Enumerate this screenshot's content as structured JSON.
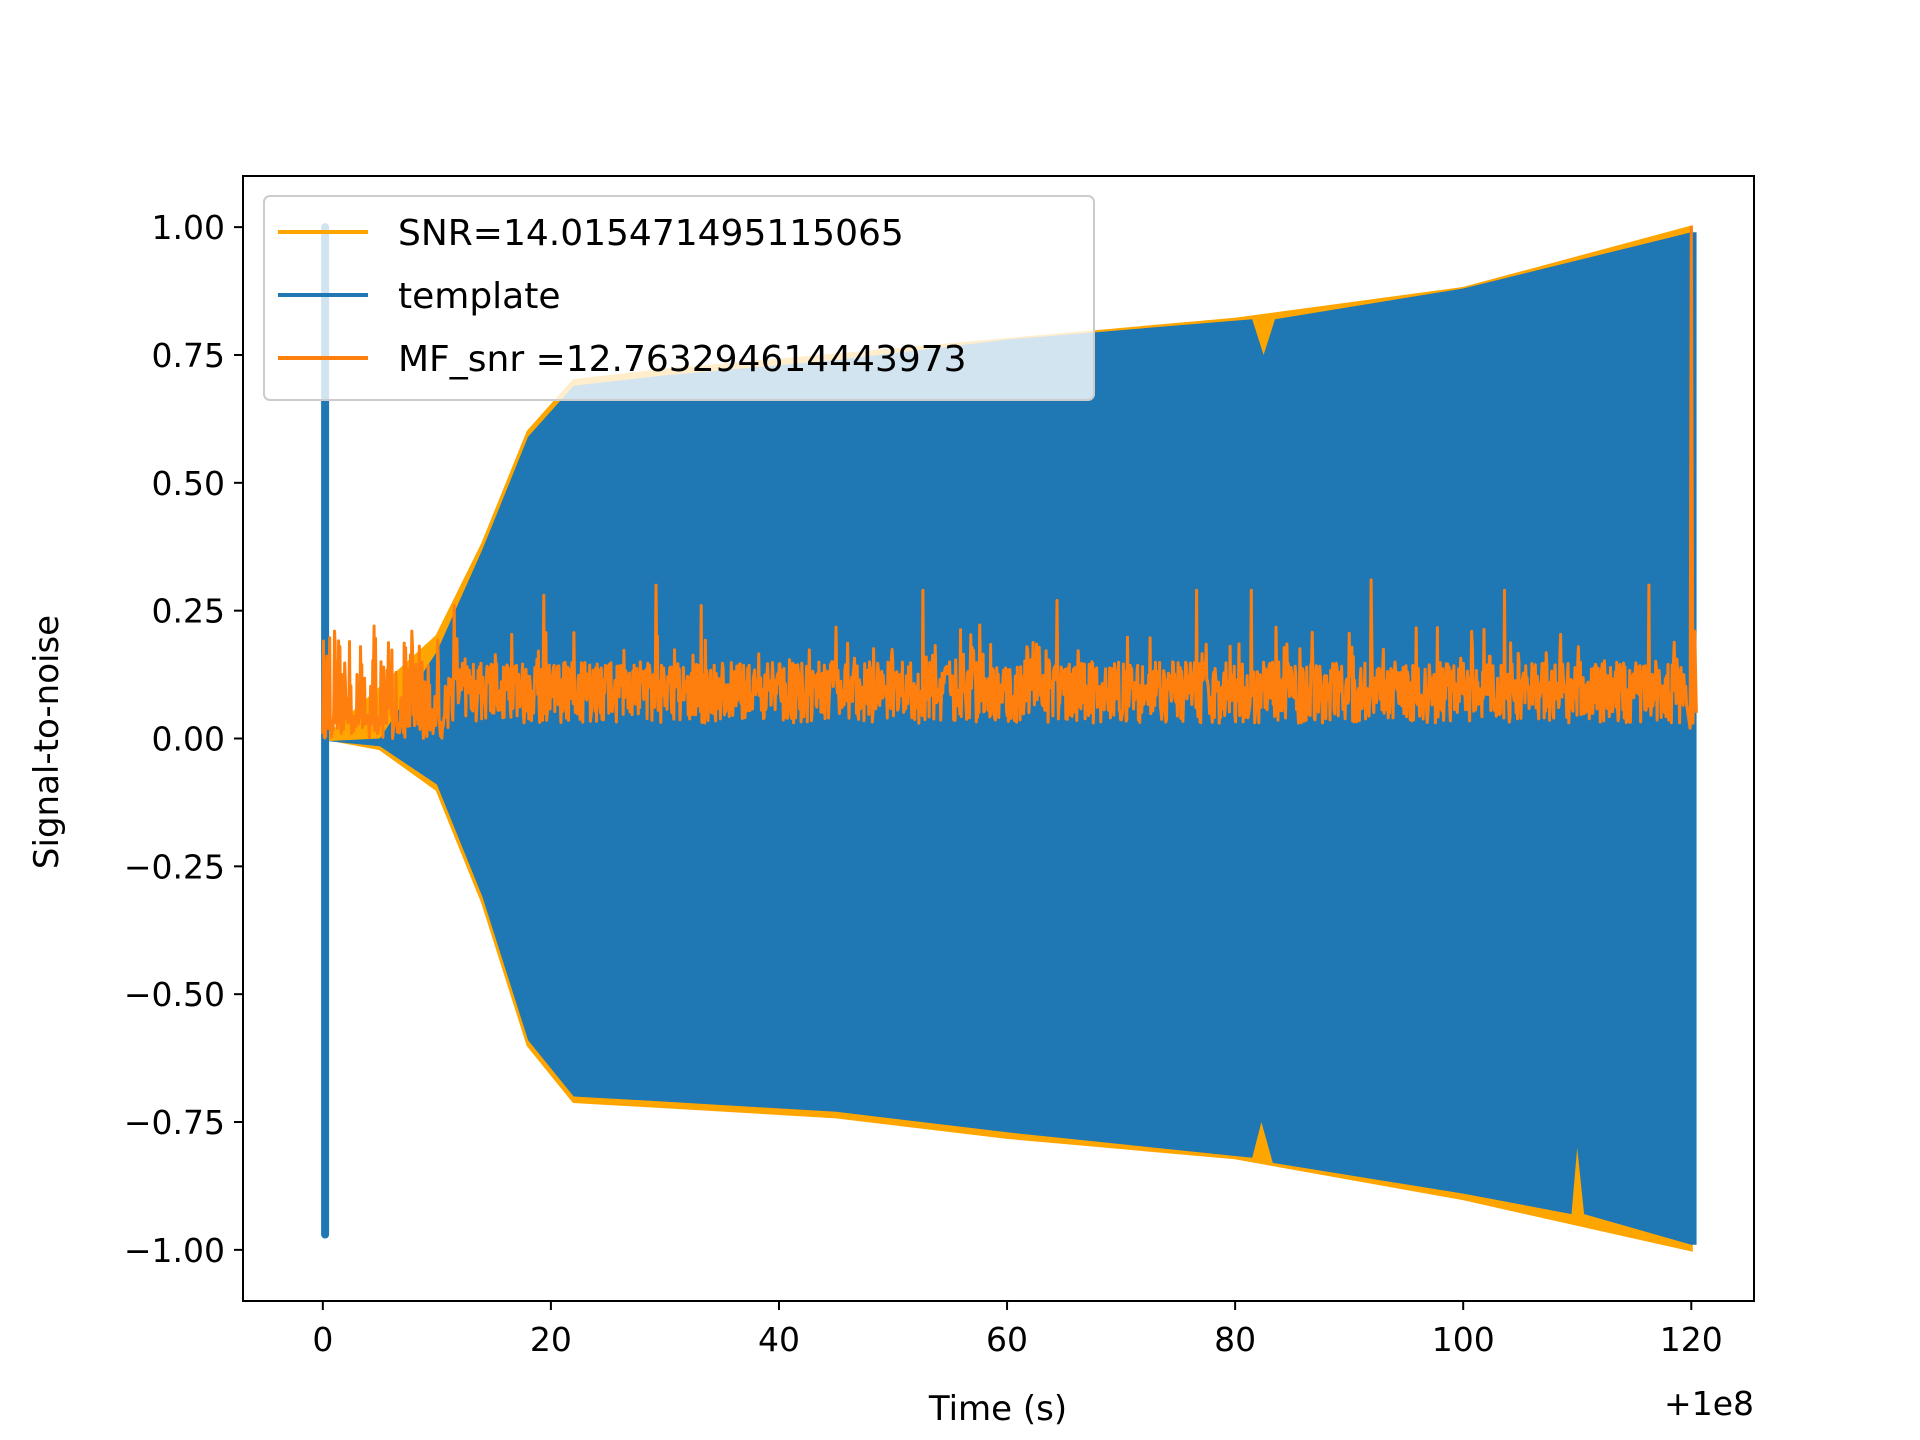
{
  "chart_data": {
    "type": "line",
    "xlabel": "Time (s)",
    "ylabel": "Signal-to-noise",
    "x_offset_label": "+1e8",
    "xlim": [
      -7,
      125.5
    ],
    "ylim": [
      -1.1,
      1.1
    ],
    "x_ticks": [
      0,
      20,
      40,
      60,
      80,
      100,
      120
    ],
    "x_tick_labels": [
      "0",
      "20",
      "40",
      "60",
      "80",
      "100",
      "120"
    ],
    "y_ticks": [
      1.0,
      0.75,
      0.5,
      0.25,
      0.0,
      -0.25,
      -0.5,
      -0.75,
      -1.0
    ],
    "y_tick_labels": [
      "1.00",
      "0.75",
      "0.50",
      "0.25",
      "0.00",
      "−0.25",
      "−0.50",
      "−0.75",
      "−1.00"
    ],
    "grid": false,
    "legend_position": "top-left",
    "series": [
      {
        "name": "SNR=14.015471495115065",
        "color": "#ffa500",
        "role": "envelope",
        "upper_envelope": [
          [
            0.2,
            0.0
          ],
          [
            10,
            0.2
          ],
          [
            14,
            0.38
          ],
          [
            18,
            0.6
          ],
          [
            22,
            0.7
          ],
          [
            30,
            0.72
          ],
          [
            45,
            0.75
          ],
          [
            60,
            0.78
          ],
          [
            80,
            0.82
          ],
          [
            100,
            0.88
          ],
          [
            120,
            1.0
          ]
        ],
        "lower_envelope": [
          [
            0.2,
            -0.0
          ],
          [
            5,
            -0.02
          ],
          [
            10,
            -0.1
          ],
          [
            14,
            -0.32
          ],
          [
            18,
            -0.6
          ],
          [
            22,
            -0.71
          ],
          [
            30,
            -0.72
          ],
          [
            45,
            -0.74
          ],
          [
            60,
            -0.78
          ],
          [
            80,
            -0.82
          ],
          [
            100,
            -0.9
          ],
          [
            120,
            -1.0
          ]
        ]
      },
      {
        "name": "template",
        "color": "#1f77b4",
        "role": "filled-oscillation",
        "spike": {
          "x": 0.2,
          "top": 1.0,
          "bottom": -0.97
        },
        "upper_envelope": [
          [
            0.4,
            -0.005
          ],
          [
            5,
            0.0
          ],
          [
            10,
            0.17
          ],
          [
            14,
            0.37
          ],
          [
            18,
            0.59
          ],
          [
            22,
            0.69
          ],
          [
            30,
            0.71
          ],
          [
            45,
            0.74
          ],
          [
            60,
            0.78
          ],
          [
            81.5,
            0.82
          ],
          [
            82.5,
            0.75
          ],
          [
            83.5,
            0.82
          ],
          [
            100,
            0.88
          ],
          [
            120,
            0.99
          ]
        ],
        "lower_envelope": [
          [
            0.4,
            -0.005
          ],
          [
            5,
            -0.015
          ],
          [
            10,
            -0.09
          ],
          [
            14,
            -0.31
          ],
          [
            18,
            -0.59
          ],
          [
            22,
            -0.7
          ],
          [
            30,
            -0.71
          ],
          [
            45,
            -0.73
          ],
          [
            60,
            -0.77
          ],
          [
            81.5,
            -0.82
          ],
          [
            82.3,
            -0.75
          ],
          [
            83.3,
            -0.83
          ],
          [
            100,
            -0.89
          ],
          [
            109.5,
            -0.93
          ],
          [
            110,
            -0.8
          ],
          [
            110.6,
            -0.93
          ],
          [
            120,
            -0.99
          ]
        ]
      },
      {
        "name": " MF_snr =12.763294614443973",
        "color": "#ff7f0e",
        "role": "noisy-snr",
        "x_range": [
          0,
          120.5
        ],
        "baseline": 0.0,
        "typical_max": 0.22,
        "peaks": [
          [
            1.0,
            0.21
          ],
          [
            4.5,
            0.22
          ],
          [
            7.8,
            0.21
          ],
          [
            11.5,
            0.26
          ],
          [
            19.4,
            0.28
          ],
          [
            29.2,
            0.3
          ],
          [
            33.2,
            0.26
          ],
          [
            52.6,
            0.29
          ],
          [
            64.4,
            0.27
          ],
          [
            76.6,
            0.29
          ],
          [
            81.4,
            0.29
          ],
          [
            91.9,
            0.31
          ],
          [
            103.6,
            0.29
          ],
          [
            116.3,
            0.3
          ],
          [
            120.0,
            1.0
          ]
        ]
      }
    ]
  }
}
